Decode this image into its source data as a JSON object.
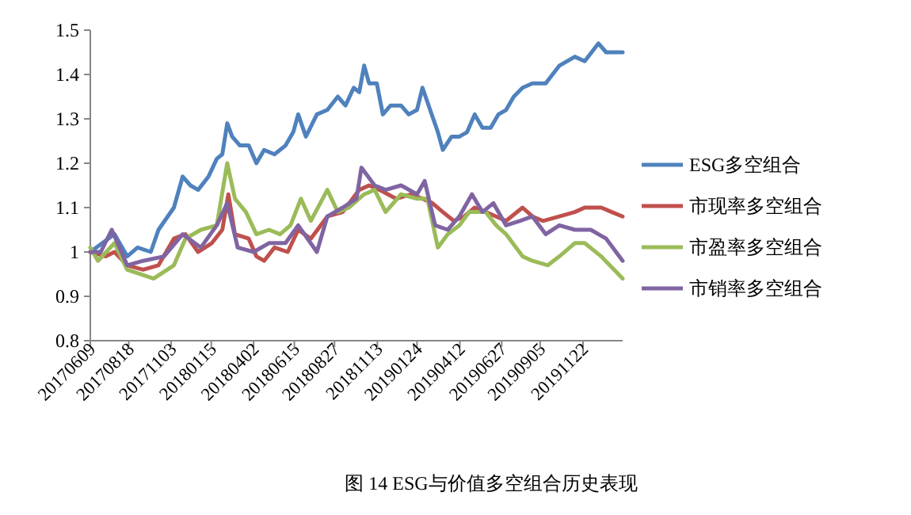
{
  "chart_data": {
    "type": "line",
    "xlim": [
      "2017-06-09",
      "2020-02-02"
    ],
    "ylim": [
      0.8,
      1.5
    ],
    "yticks": [
      0.8,
      0.9,
      1,
      1.1,
      1.2,
      1.3,
      1.4,
      1.5
    ],
    "xticks": [
      {
        "value": "2017-06-09",
        "label": "20170609"
      },
      {
        "value": "2017-08-18",
        "label": "20170818"
      },
      {
        "value": "2017-11-03",
        "label": "20171103"
      },
      {
        "value": "2018-01-15",
        "label": "20180115"
      },
      {
        "value": "2018-04-02",
        "label": "20180402"
      },
      {
        "value": "2018-06-15",
        "label": "20180615"
      },
      {
        "value": "2018-08-27",
        "label": "20180827"
      },
      {
        "value": "2018-11-13",
        "label": "20181113"
      },
      {
        "value": "2019-01-24",
        "label": "20190124"
      },
      {
        "value": "2019-04-12",
        "label": "20190412"
      },
      {
        "value": "2019-06-27",
        "label": "20190627"
      },
      {
        "value": "2019-09-05",
        "label": "20190905"
      },
      {
        "value": "2019-11-22",
        "label": "20191122"
      }
    ],
    "legend": "right",
    "grid": false,
    "marker": "none",
    "line_style": "solid",
    "annotations": [
      "图  14 ESG与价值多空组合历史表现"
    ],
    "series": [
      {
        "name": "ESG多空组合",
        "color": "#4f81bd",
        "x": [
          "2017-06-09",
          "2017-07-23",
          "2017-08-15",
          "2017-09-03",
          "2017-09-27",
          "2017-10-11",
          "2017-11-08",
          "2017-11-24",
          "2017-12-08",
          "2017-12-22",
          "2018-01-10",
          "2018-01-25",
          "2018-02-04",
          "2018-02-13",
          "2018-02-22",
          "2018-03-08",
          "2018-03-24",
          "2018-04-07",
          "2018-04-21",
          "2018-05-10",
          "2018-05-30",
          "2018-06-13",
          "2018-06-22",
          "2018-07-06",
          "2018-07-26",
          "2018-08-14",
          "2018-09-02",
          "2018-09-16",
          "2018-10-01",
          "2018-10-11",
          "2018-10-20",
          "2018-10-29",
          "2018-11-12",
          "2018-11-23",
          "2018-12-07",
          "2018-12-26",
          "2019-01-09",
          "2019-01-24",
          "2019-02-03",
          "2019-02-17",
          "2019-03-03",
          "2019-03-12",
          "2019-03-28",
          "2019-04-11",
          "2019-04-25",
          "2019-05-09",
          "2019-05-23",
          "2019-06-07",
          "2019-06-21",
          "2019-07-05",
          "2019-07-19",
          "2019-08-04",
          "2019-08-22",
          "2019-09-15",
          "2019-10-10",
          "2019-11-07",
          "2019-11-25",
          "2019-12-20",
          "2020-01-03",
          "2020-02-02"
        ],
        "values": [
          1.0,
          1.04,
          0.99,
          1.01,
          1.0,
          1.05,
          1.1,
          1.17,
          1.15,
          1.14,
          1.17,
          1.21,
          1.22,
          1.29,
          1.26,
          1.24,
          1.24,
          1.2,
          1.23,
          1.22,
          1.24,
          1.27,
          1.31,
          1.26,
          1.31,
          1.32,
          1.35,
          1.33,
          1.37,
          1.36,
          1.42,
          1.38,
          1.38,
          1.31,
          1.33,
          1.33,
          1.31,
          1.32,
          1.37,
          1.32,
          1.27,
          1.23,
          1.26,
          1.26,
          1.27,
          1.31,
          1.28,
          1.28,
          1.31,
          1.32,
          1.35,
          1.37,
          1.38,
          1.38,
          1.42,
          1.44,
          1.43,
          1.47,
          1.45,
          1.45
        ]
      },
      {
        "name": "市现率多空组合",
        "color": "#c0504d",
        "x": [
          "2017-06-09",
          "2017-07-07",
          "2017-07-23",
          "2017-08-15",
          "2017-09-13",
          "2017-10-11",
          "2017-11-08",
          "2017-11-29",
          "2017-12-22",
          "2018-01-16",
          "2018-02-04",
          "2018-02-15",
          "2018-02-27",
          "2018-03-24",
          "2018-04-07",
          "2018-04-21",
          "2018-05-10",
          "2018-06-03",
          "2018-06-22",
          "2018-07-15",
          "2018-08-14",
          "2018-09-11",
          "2018-10-11",
          "2018-10-29",
          "2018-11-17",
          "2018-12-17",
          "2019-01-14",
          "2019-02-03",
          "2019-02-21",
          "2019-03-12",
          "2019-04-01",
          "2019-04-20",
          "2019-05-09",
          "2019-05-29",
          "2019-06-17",
          "2019-07-05",
          "2019-08-04",
          "2019-08-22",
          "2019-09-10",
          "2019-10-10",
          "2019-11-07",
          "2019-11-25",
          "2019-12-25",
          "2020-01-13",
          "2020-02-02"
        ],
        "values": [
          1.0,
          0.99,
          1.0,
          0.97,
          0.96,
          0.97,
          1.03,
          1.04,
          1.0,
          1.02,
          1.05,
          1.13,
          1.04,
          1.03,
          0.99,
          0.98,
          1.01,
          1.0,
          1.05,
          1.03,
          1.08,
          1.09,
          1.14,
          1.15,
          1.14,
          1.12,
          1.13,
          1.12,
          1.11,
          1.09,
          1.07,
          1.08,
          1.1,
          1.09,
          1.08,
          1.07,
          1.1,
          1.08,
          1.07,
          1.08,
          1.09,
          1.1,
          1.1,
          1.09,
          1.08
        ]
      },
      {
        "name": "市盈率多空组合",
        "color": "#9bbb59",
        "x": [
          "2017-06-09",
          "2017-06-23",
          "2017-07-23",
          "2017-08-15",
          "2017-10-02",
          "2017-11-08",
          "2017-11-29",
          "2017-12-27",
          "2018-01-25",
          "2018-02-13",
          "2018-02-27",
          "2018-03-19",
          "2018-04-07",
          "2018-04-30",
          "2018-05-20",
          "2018-06-08",
          "2018-06-27",
          "2018-07-15",
          "2018-08-14",
          "2018-09-02",
          "2018-09-22",
          "2018-10-20",
          "2018-11-08",
          "2018-11-28",
          "2018-12-26",
          "2019-01-24",
          "2019-02-12",
          "2019-03-03",
          "2019-03-21",
          "2019-04-11",
          "2019-04-29",
          "2019-05-29",
          "2019-06-17",
          "2019-07-05",
          "2019-08-04",
          "2019-08-22",
          "2019-09-19",
          "2019-10-10",
          "2019-11-07",
          "2019-11-25",
          "2019-12-25",
          "2020-02-02"
        ],
        "values": [
          1.01,
          0.98,
          1.02,
          0.96,
          0.94,
          0.97,
          1.03,
          1.05,
          1.06,
          1.2,
          1.12,
          1.09,
          1.04,
          1.05,
          1.04,
          1.06,
          1.12,
          1.07,
          1.14,
          1.09,
          1.1,
          1.13,
          1.14,
          1.09,
          1.13,
          1.12,
          1.12,
          1.01,
          1.04,
          1.06,
          1.09,
          1.09,
          1.06,
          1.04,
          0.99,
          0.98,
          0.97,
          0.99,
          1.02,
          1.02,
          0.99,
          0.94
        ]
      },
      {
        "name": "市销率多空组合",
        "color": "#8064a2",
        "x": [
          "2017-06-09",
          "2017-06-28",
          "2017-07-18",
          "2017-08-15",
          "2017-09-13",
          "2017-10-21",
          "2017-11-24",
          "2017-12-27",
          "2018-01-25",
          "2018-02-13",
          "2018-03-04",
          "2018-04-02",
          "2018-04-30",
          "2018-05-30",
          "2018-06-22",
          "2018-07-26",
          "2018-08-14",
          "2018-09-11",
          "2018-10-06",
          "2018-10-15",
          "2018-11-08",
          "2018-11-28",
          "2018-12-26",
          "2019-01-24",
          "2019-02-07",
          "2019-02-26",
          "2019-03-21",
          "2019-04-11",
          "2019-05-04",
          "2019-05-23",
          "2019-06-12",
          "2019-07-05",
          "2019-07-30",
          "2019-08-22",
          "2019-09-15",
          "2019-10-10",
          "2019-11-07",
          "2019-12-06",
          "2020-01-03",
          "2020-02-02"
        ],
        "values": [
          1.0,
          1.0,
          1.05,
          0.97,
          0.98,
          0.99,
          1.04,
          1.01,
          1.06,
          1.11,
          1.01,
          1.0,
          1.02,
          1.02,
          1.06,
          1.0,
          1.08,
          1.1,
          1.12,
          1.19,
          1.15,
          1.14,
          1.15,
          1.13,
          1.16,
          1.06,
          1.05,
          1.08,
          1.13,
          1.09,
          1.11,
          1.06,
          1.07,
          1.08,
          1.04,
          1.06,
          1.05,
          1.05,
          1.03,
          0.98
        ]
      }
    ]
  }
}
